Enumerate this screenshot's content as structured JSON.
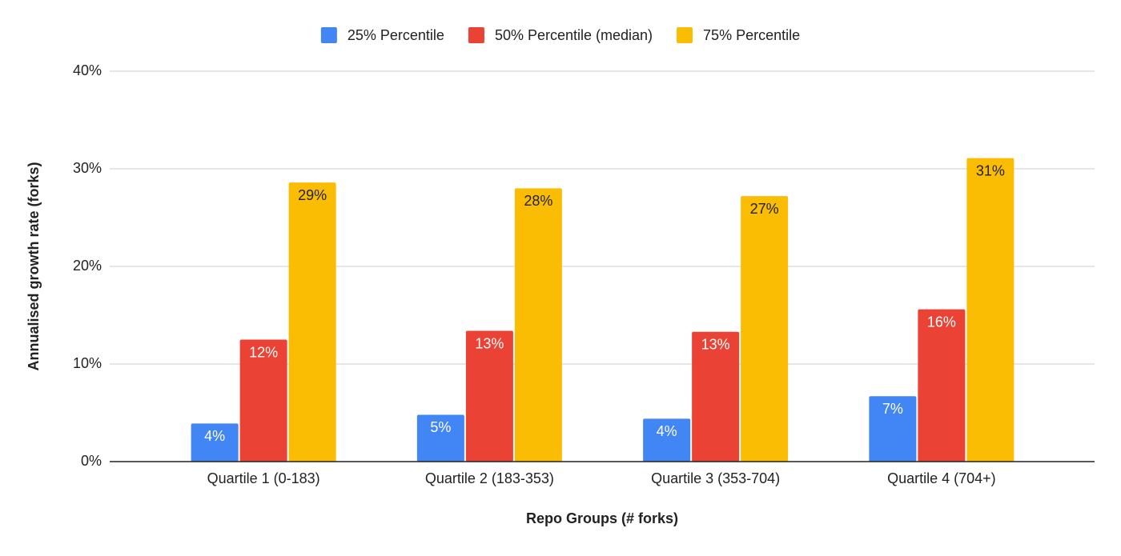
{
  "chart_data": {
    "type": "bar",
    "x_label": "Repo Groups (# forks)",
    "y_label": "Annualised growth rate (forks)",
    "categories": [
      "Quartile 1 (0-183)",
      "Quartile 2 (183-353)",
      "Quartile 3 (353-704)",
      "Quartile 4 (704+)"
    ],
    "series": [
      {
        "name": "25% Percentile",
        "color": "#4285f4",
        "values": [
          3.9,
          4.8,
          4.4,
          6.7
        ],
        "value_labels": [
          "4%",
          "5%",
          "4%",
          "7%"
        ]
      },
      {
        "name": "50% Percentile (median)",
        "color": "#ea4335",
        "values": [
          12.5,
          13.4,
          13.3,
          15.6
        ],
        "value_labels": [
          "12%",
          "13%",
          "13%",
          "16%"
        ]
      },
      {
        "name": "75% Percentile",
        "color": "#fbbc04",
        "values": [
          28.6,
          28.0,
          27.2,
          31.1
        ],
        "value_labels": [
          "29%",
          "28%",
          "27%",
          "31%"
        ]
      }
    ],
    "ylim": [
      0,
      40
    ],
    "yticks": [
      {
        "value": 0,
        "label": "0%"
      },
      {
        "value": 10,
        "label": "10%"
      },
      {
        "value": 20,
        "label": "20%"
      },
      {
        "value": 30,
        "label": "30%"
      },
      {
        "value": 40,
        "label": "40%"
      }
    ],
    "grid": true,
    "legend": "top"
  }
}
